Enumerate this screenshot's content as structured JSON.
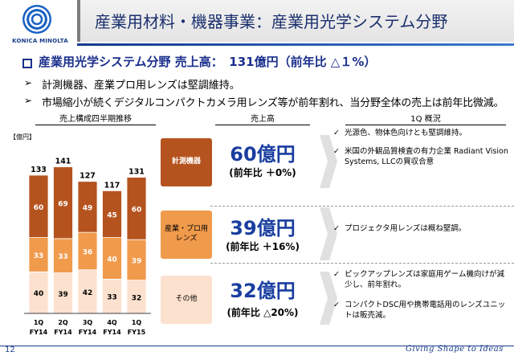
{
  "header": {
    "logo_text": "KONICA MINOLTA",
    "title": "産業用材料・機器事業：産業用光学システム分野"
  },
  "headline": "産業用光学システム分野 売上高：　131億円（前年比 △１%）",
  "bullets": [
    "計測機器、産業プロ用レンズは堅調維持。",
    "市場縮小が続くデジタルコンパクトカメラ用レンズ等が前年割れ、当分野全体の売上は前年比微減。"
  ],
  "column_headers": {
    "chart": "売上構成四半期推移",
    "sales": "売上高",
    "overview": "1Q 概況"
  },
  "chart_data": {
    "type": "bar",
    "stacked": true,
    "unit_label": "【億円】",
    "categories": [
      "1Q FY14",
      "2Q FY14",
      "3Q FY14",
      "4Q FY14",
      "1Q FY15"
    ],
    "category_lines": [
      [
        "1Q",
        "FY14"
      ],
      [
        "2Q",
        "FY14"
      ],
      [
        "3Q",
        "FY14"
      ],
      [
        "4Q",
        "FY14"
      ],
      [
        "1Q",
        "FY15"
      ]
    ],
    "series": [
      {
        "values": [
          40,
          39,
          42,
          33,
          32
        ],
        "color": "#fce1cf"
      },
      {
        "values": [
          33,
          33,
          36,
          40,
          39
        ],
        "color": "#f09a4c"
      },
      {
        "values": [
          60,
          69,
          49,
          45,
          60
        ],
        "color": "#b5531f"
      }
    ],
    "totals": [
      133,
      141,
      127,
      117,
      131
    ],
    "ylim": [
      0,
      150
    ],
    "grid": false,
    "legend": "none"
  },
  "segments": [
    {
      "label": "計測機器",
      "amount": "60億円",
      "yoy": "(前年比 ＋0%)"
    },
    {
      "label": "産業・プロ用\nレンズ",
      "amount": "39億円",
      "yoy": "(前年比 ＋16%)"
    },
    {
      "label": "その他",
      "amount": "32億円",
      "yoy": "(前年比 △20%)"
    }
  ],
  "overview": [
    "光源色、物体色向けとも堅調維持。",
    "米国の外観品質検査の有力企業 Radiant Vision Systems, LLCの買収合意",
    "プロジェクタ用レンズは概ね堅調。",
    "ピックアップレンズは家庭用ゲーム機向けが減少し、前年割れ。",
    "コンパクトDSC用や携帯電話用のレンズユニットは販売減。"
  ],
  "footer": {
    "page_number": "12",
    "tagline": "Giving Shape to Ideas"
  },
  "icons": {
    "headline_bullet": "square-outline-icon",
    "arrow_bullet": "arrowhead-right-icon",
    "overview_bullet": "checkmark-icon",
    "chevron": "chevron-right-icon"
  }
}
